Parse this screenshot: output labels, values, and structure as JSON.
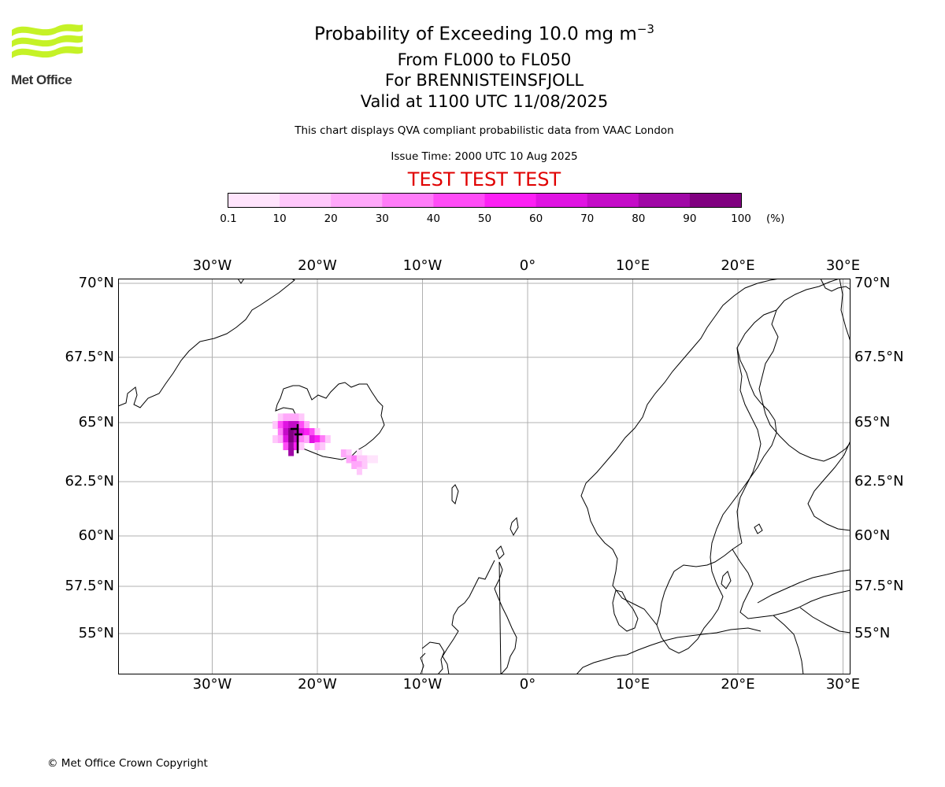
{
  "header": {
    "logo_text": "Met Office",
    "title_main": "Probability of Exceeding 10.0 mg m",
    "title_sup": "−3",
    "line2": "From FL000 to FL050",
    "line3": "For BRENNISTEINSFJOLL",
    "line4": "Valid at 1100 UTC 11/08/2025",
    "note": "This chart displays QVA compliant probabilistic data from VAAC London",
    "issue_time": "Issue Time: 2000 UTC 10 Aug 2025",
    "test_banner": "TEST TEST TEST"
  },
  "colorbar": {
    "labels": [
      "0.1",
      "10",
      "20",
      "30",
      "40",
      "50",
      "60",
      "70",
      "80",
      "90",
      "100"
    ],
    "unit": "(%)",
    "colors": [
      "#ffe4fc",
      "#ffc8fb",
      "#ffa8fa",
      "#ff7cf8",
      "#ff4cf6",
      "#fc20f4",
      "#e014e2",
      "#c40cc8",
      "#a008a6",
      "#800080",
      "#5c005c"
    ]
  },
  "map": {
    "lon_labels": [
      "30°W",
      "20°W",
      "10°W",
      "0°",
      "10°E",
      "20°E",
      "30°E"
    ],
    "lat_labels": [
      "70°N",
      "67.5°N",
      "65°N",
      "62.5°N",
      "60°N",
      "57.5°N",
      "55°N"
    ],
    "lon_values": [
      -30,
      -20,
      -10,
      0,
      10,
      20,
      30
    ],
    "lat_values": [
      70,
      67.5,
      65,
      62.5,
      60,
      57.5,
      55
    ],
    "plume_cells": [
      {
        "lon": -23.5,
        "lat": 65.2,
        "p": 15
      },
      {
        "lon": -23.0,
        "lat": 65.2,
        "p": 20
      },
      {
        "lon": -22.5,
        "lat": 65.2,
        "p": 25
      },
      {
        "lon": -22.0,
        "lat": 65.2,
        "p": 20
      },
      {
        "lon": -21.5,
        "lat": 65.2,
        "p": 15
      },
      {
        "lon": -24.0,
        "lat": 64.9,
        "p": 10
      },
      {
        "lon": -23.5,
        "lat": 64.9,
        "p": 45
      },
      {
        "lon": -23.0,
        "lat": 64.9,
        "p": 65
      },
      {
        "lon": -22.5,
        "lat": 64.9,
        "p": 75
      },
      {
        "lon": -22.0,
        "lat": 64.9,
        "p": 70
      },
      {
        "lon": -21.5,
        "lat": 64.9,
        "p": 40
      },
      {
        "lon": -21.0,
        "lat": 64.9,
        "p": 20
      },
      {
        "lon": -23.5,
        "lat": 64.6,
        "p": 35
      },
      {
        "lon": -23.0,
        "lat": 64.6,
        "p": 70
      },
      {
        "lon": -22.5,
        "lat": 64.6,
        "p": 95
      },
      {
        "lon": -22.0,
        "lat": 64.6,
        "p": 85
      },
      {
        "lon": -21.5,
        "lat": 64.6,
        "p": 65
      },
      {
        "lon": -21.0,
        "lat": 64.6,
        "p": 55
      },
      {
        "lon": -20.5,
        "lat": 64.6,
        "p": 45
      },
      {
        "lon": -20.0,
        "lat": 64.6,
        "p": 15
      },
      {
        "lon": -24.0,
        "lat": 64.3,
        "p": 10
      },
      {
        "lon": -23.5,
        "lat": 64.3,
        "p": 20
      },
      {
        "lon": -23.0,
        "lat": 64.3,
        "p": 65
      },
      {
        "lon": -22.5,
        "lat": 64.3,
        "p": 95
      },
      {
        "lon": -22.0,
        "lat": 64.3,
        "p": 75
      },
      {
        "lon": -21.5,
        "lat": 64.3,
        "p": 35
      },
      {
        "lon": -21.0,
        "lat": 64.3,
        "p": 25
      },
      {
        "lon": -20.5,
        "lat": 64.3,
        "p": 60
      },
      {
        "lon": -20.0,
        "lat": 64.3,
        "p": 55
      },
      {
        "lon": -19.5,
        "lat": 64.3,
        "p": 30
      },
      {
        "lon": -19.0,
        "lat": 64.3,
        "p": 12
      },
      {
        "lon": -23.0,
        "lat": 64.0,
        "p": 45
      },
      {
        "lon": -22.5,
        "lat": 64.0,
        "p": 85
      },
      {
        "lon": -22.0,
        "lat": 64.0,
        "p": 55
      },
      {
        "lon": -21.5,
        "lat": 64.0,
        "p": 10
      },
      {
        "lon": -20.0,
        "lat": 64.0,
        "p": 20
      },
      {
        "lon": -19.5,
        "lat": 64.0,
        "p": 15
      },
      {
        "lon": -22.5,
        "lat": 63.75,
        "p": 80
      },
      {
        "lon": -17.5,
        "lat": 63.7,
        "p": 20
      },
      {
        "lon": -17.0,
        "lat": 63.7,
        "p": 15
      },
      {
        "lon": -16.0,
        "lat": 63.7,
        "p": 8
      },
      {
        "lon": -17.0,
        "lat": 63.45,
        "p": 25
      },
      {
        "lon": -16.5,
        "lat": 63.45,
        "p": 30
      },
      {
        "lon": -16.0,
        "lat": 63.45,
        "p": 15
      },
      {
        "lon": -15.5,
        "lat": 63.45,
        "p": 12
      },
      {
        "lon": -15.0,
        "lat": 63.45,
        "p": 8
      },
      {
        "lon": -14.5,
        "lat": 63.45,
        "p": 6
      },
      {
        "lon": -16.5,
        "lat": 63.2,
        "p": 20
      },
      {
        "lon": -16.0,
        "lat": 63.2,
        "p": 25
      },
      {
        "lon": -15.5,
        "lat": 63.2,
        "p": 15
      },
      {
        "lon": -16.0,
        "lat": 62.95,
        "p": 10
      }
    ]
  },
  "footer": {
    "copyright": "© Met Office Crown Copyright"
  }
}
